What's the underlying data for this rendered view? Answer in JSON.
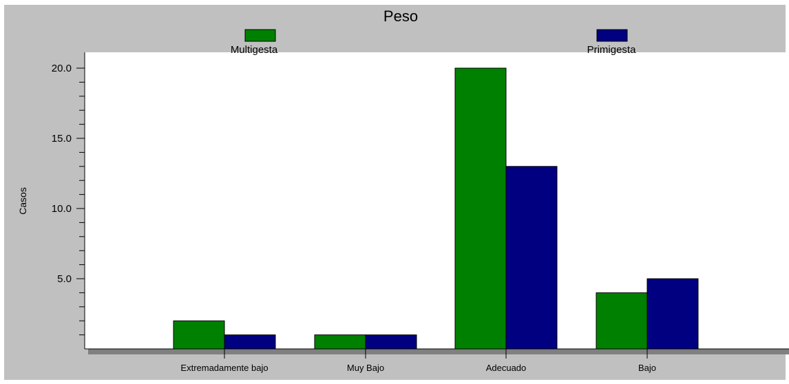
{
  "chart_data": {
    "type": "bar",
    "title": "Peso",
    "xlabel": "",
    "ylabel": "Casos",
    "categories": [
      "Extremadamente bajo",
      "Muy Bajo",
      "Adecuado",
      "Bajo"
    ],
    "series": [
      {
        "name": "Multigesta",
        "color": "#008000",
        "values": [
          2,
          1,
          20,
          4
        ]
      },
      {
        "name": "Primigesta",
        "color": "#000080",
        "values": [
          1,
          1,
          13,
          5
        ]
      }
    ],
    "ylim": [
      0,
      20
    ],
    "y_ticks": [
      "5.0",
      "10.0",
      "15.0",
      "20.0"
    ],
    "grid": false,
    "legend_position": "top"
  }
}
